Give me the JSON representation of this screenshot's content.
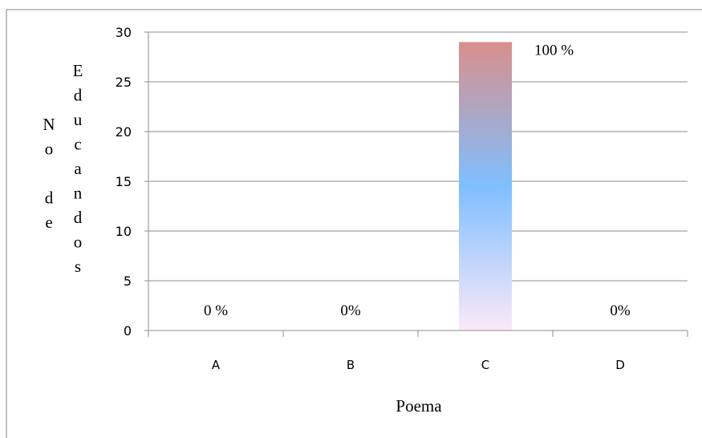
{
  "chart_data": {
    "type": "bar",
    "categories": [
      "A",
      "B",
      "C",
      "D"
    ],
    "values": [
      0,
      0,
      29,
      0
    ],
    "data_labels": [
      "0 %",
      "0%",
      "100 %",
      "0%"
    ],
    "xlabel": "Poema",
    "ylabel_parts": [
      "No de",
      "Educandos"
    ],
    "ylim": [
      0,
      30
    ],
    "yticks": [
      0,
      5,
      10,
      15,
      20,
      25,
      30
    ],
    "grid": true,
    "bar_gradient": [
      "#d98f8c",
      "#7fbfff",
      "#fbe9f7"
    ]
  }
}
